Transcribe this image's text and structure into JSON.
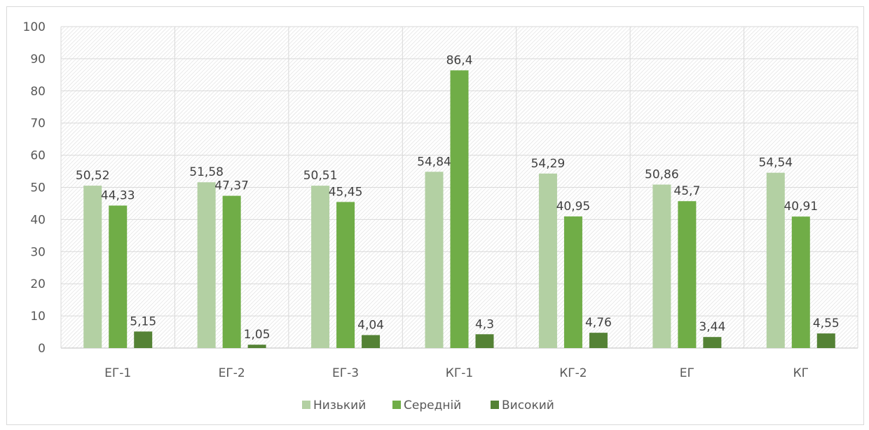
{
  "chart_data": {
    "type": "bar",
    "categories": [
      "ЕГ-1",
      "ЕГ-2",
      "ЕГ-3",
      "КГ-1",
      "КГ-2",
      "ЕГ",
      "КГ"
    ],
    "series": [
      {
        "name": "Низький",
        "color": "#b3d0a3",
        "values": [
          50.52,
          51.58,
          50.51,
          54.84,
          54.29,
          50.86,
          54.54
        ],
        "labels": [
          "50,52",
          "51,58",
          "50,51",
          "54,84",
          "54,29",
          "50,86",
          "54,54"
        ]
      },
      {
        "name": "Середній",
        "color": "#70ad47",
        "values": [
          44.33,
          47.37,
          45.45,
          86.4,
          40.95,
          45.7,
          40.91
        ],
        "labels": [
          "44,33",
          "47,37",
          "45,45",
          "86,4",
          "40,95",
          "45,7",
          "40,91"
        ]
      },
      {
        "name": "Високий",
        "color": "#548235",
        "values": [
          5.15,
          1.05,
          4.04,
          4.3,
          4.76,
          3.44,
          4.55
        ],
        "labels": [
          "5,15",
          "1,05",
          "4,04",
          "4,3",
          "4,76",
          "3,44",
          "4,55"
        ]
      }
    ],
    "ylim": [
      0,
      100
    ],
    "yticks": [
      "0",
      "10",
      "20",
      "30",
      "40",
      "50",
      "60",
      "70",
      "80",
      "90",
      "100"
    ],
    "grid": true,
    "legend": "bottom",
    "title": "",
    "xlabel": "",
    "ylabel": ""
  }
}
